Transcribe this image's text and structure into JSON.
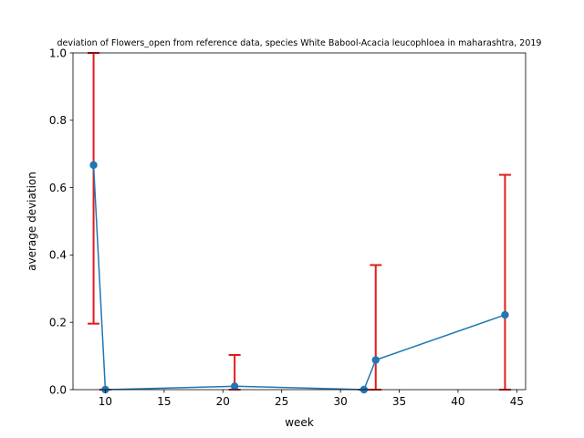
{
  "chart_data": {
    "type": "line",
    "title": "deviation of Flowers_open from reference data, species White Babool-Acacia leucophloea in maharashtra, 2019",
    "xlabel": "week",
    "ylabel": "average deviation",
    "xlim": [
      7.25,
      45.75
    ],
    "ylim": [
      0,
      1.0
    ],
    "xticks": [
      10,
      15,
      20,
      25,
      30,
      35,
      40,
      45
    ],
    "yticks": [
      0.0,
      0.2,
      0.4,
      0.6,
      0.8,
      1.0
    ],
    "grid": false,
    "line_color": "#1f77b4",
    "errorbar_color": "#e41a1c",
    "series": [
      {
        "x": [
          9,
          10,
          21,
          32,
          33,
          44
        ],
        "y": [
          0.667,
          0.0,
          0.01,
          0.0,
          0.088,
          0.222
        ],
        "err_low": [
          0.196,
          0.0,
          0.0,
          0.0,
          0.0,
          0.0
        ],
        "err_high": [
          1.0,
          0.0,
          0.103,
          0.0,
          0.37,
          0.638
        ]
      }
    ]
  }
}
